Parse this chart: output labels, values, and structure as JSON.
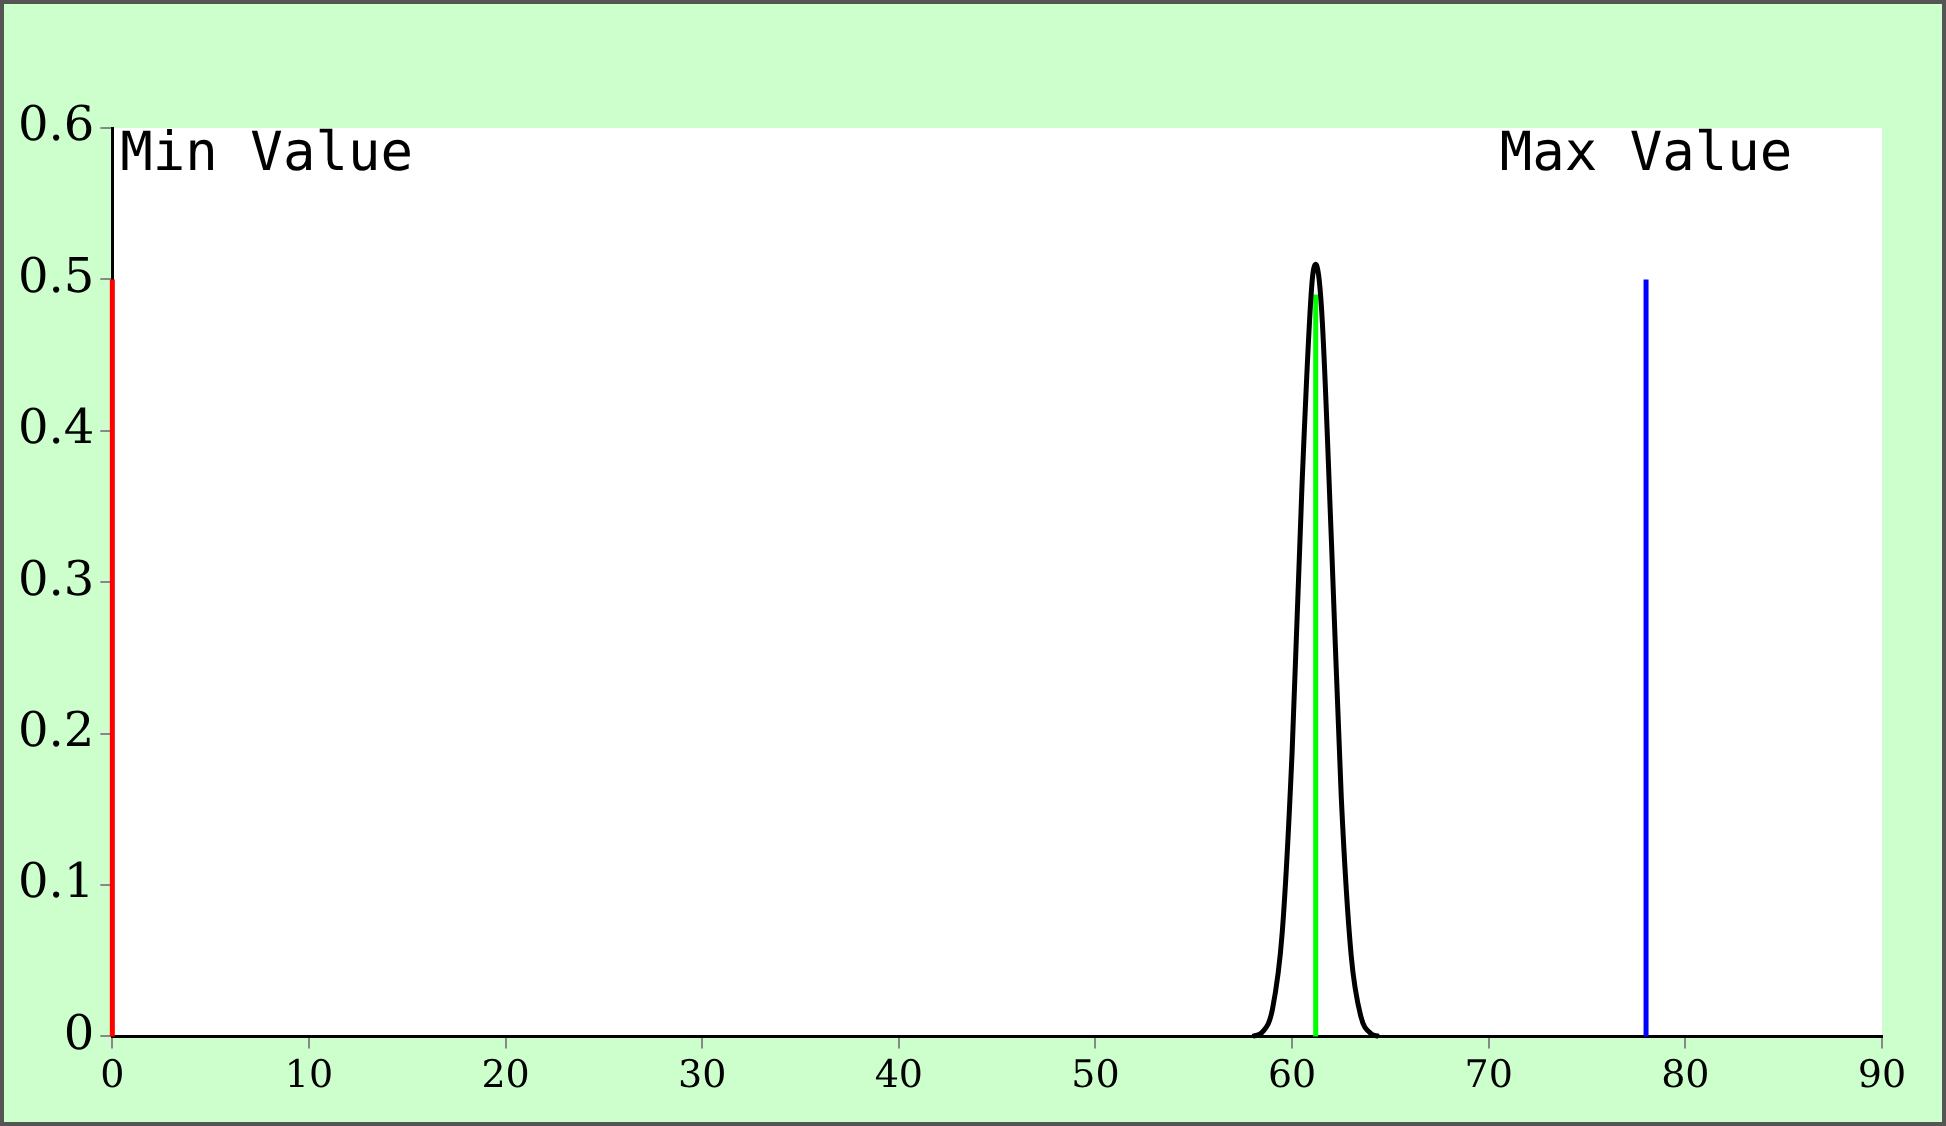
{
  "chart_data": {
    "type": "line",
    "xlim": [
      0,
      90
    ],
    "xticks": [
      0,
      10,
      20,
      30,
      40,
      50,
      60,
      70,
      80,
      90
    ],
    "ylim": [
      0,
      0.6
    ],
    "yticks": [
      0,
      0.1,
      0.2,
      0.3,
      0.4,
      0.5,
      0.6
    ],
    "grid": false,
    "legend": false,
    "marker": "none",
    "line_style": "solid",
    "series": [
      {
        "color": "#000000",
        "x": [
          58,
          58.5,
          59,
          59.5,
          60,
          60.5,
          61,
          61.2,
          61.5,
          62,
          62.5,
          63,
          63.5,
          64,
          64.4
        ],
        "values": [
          0,
          0.003,
          0.018,
          0.069,
          0.188,
          0.363,
          0.496,
          0.51,
          0.48,
          0.327,
          0.158,
          0.054,
          0.013,
          0.002,
          0
        ]
      },
      {
        "color": "#00ff00",
        "x": [
          61.2,
          61.2
        ],
        "values": [
          0,
          0.49
        ]
      },
      {
        "name": "Min Value",
        "color": "#ff0000",
        "x": [
          0,
          0
        ],
        "values": [
          0,
          0.5
        ]
      },
      {
        "name": "Max Value",
        "color": "#0000ff",
        "x": [
          78,
          78
        ],
        "values": [
          0,
          0.5
        ]
      }
    ]
  }
}
